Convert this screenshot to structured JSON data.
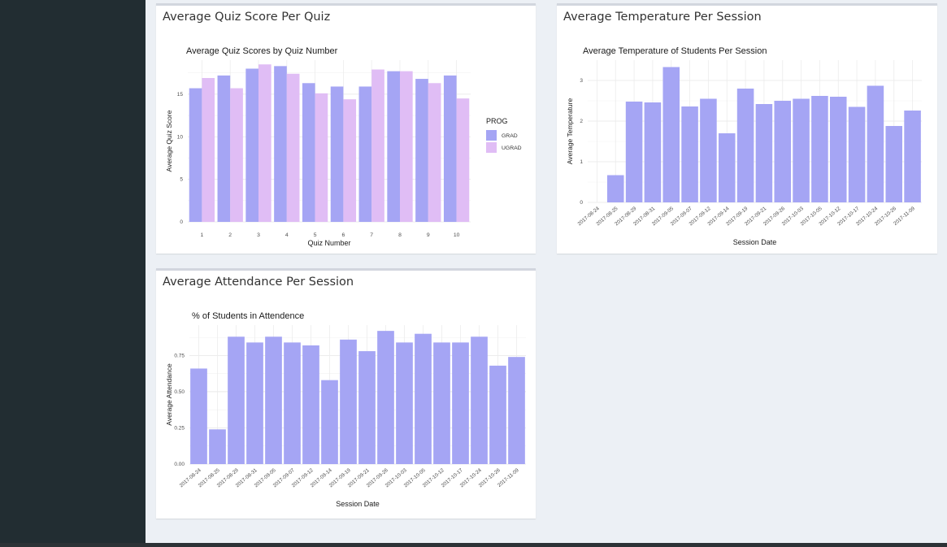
{
  "panels": {
    "quiz": {
      "title": "Average Quiz Score Per Quiz"
    },
    "temp": {
      "title": "Average Temperature Per Session"
    },
    "att": {
      "title": "Average Attendance Per Session"
    }
  },
  "colors": {
    "sidebar": "#222d32",
    "grad": "#a5a5f4",
    "ugrad": "#e0bdf5",
    "single_bar": "#a5a5f4"
  },
  "chart_data": [
    {
      "id": "quiz",
      "type": "bar",
      "title": "Average Quiz Scores by Quiz Number",
      "xlabel": "Quiz Number",
      "ylabel": "Average Quiz Score",
      "ylim": [
        0,
        19
      ],
      "yticks": [
        0,
        5,
        10,
        15
      ],
      "grid": true,
      "legend": {
        "title": "PROG",
        "position": "right"
      },
      "categories": [
        "1",
        "2",
        "3",
        "4",
        "5",
        "6",
        "7",
        "8",
        "9",
        "10"
      ],
      "series": [
        {
          "name": "GRAD",
          "values": [
            15.7,
            17.2,
            18.0,
            18.3,
            16.3,
            15.9,
            15.9,
            17.7,
            16.8,
            17.2
          ]
        },
        {
          "name": "UGRAD",
          "values": [
            16.9,
            15.7,
            18.5,
            17.4,
            15.1,
            14.4,
            17.9,
            17.7,
            16.3,
            14.5
          ]
        }
      ]
    },
    {
      "id": "temp",
      "type": "bar",
      "title": "Average Temperature of Students Per Session",
      "xlabel": "Session Date",
      "ylabel": "Average Temperature",
      "ylim": [
        0,
        3.5
      ],
      "yticks": [
        0,
        1,
        2,
        3
      ],
      "grid": true,
      "categories": [
        "2017-08-24",
        "2017-08-25",
        "2017-08-29",
        "2017-08-31",
        "2017-09-05",
        "2017-09-07",
        "2017-09-12",
        "2017-09-14",
        "2017-09-19",
        "2017-09-21",
        "2017-09-26",
        "2017-10-03",
        "2017-10-05",
        "2017-10-12",
        "2017-10-17",
        "2017-10-24",
        "2017-10-26",
        "2017-11-09"
      ],
      "values": [
        0,
        0.67,
        2.48,
        2.46,
        3.33,
        2.36,
        2.55,
        1.7,
        2.8,
        2.42,
        2.5,
        2.55,
        2.62,
        2.6,
        2.35,
        2.87,
        1.88,
        2.26
      ]
    },
    {
      "id": "att",
      "type": "bar",
      "title": "% of Students in Attendence",
      "xlabel": "Session Date",
      "ylabel": "Average Attendance",
      "ylim": [
        0,
        0.96
      ],
      "yticks": [
        0,
        0.25,
        0.5,
        0.75
      ],
      "ytick_labels": [
        "0.00",
        "0.25",
        "0.50",
        "0.75"
      ],
      "grid": true,
      "categories": [
        "2017-08-24",
        "2017-08-25",
        "2017-08-29",
        "2017-08-31",
        "2017-09-05",
        "2017-09-07",
        "2017-09-12",
        "2017-09-14",
        "2017-09-19",
        "2017-09-21",
        "2017-09-26",
        "2017-10-03",
        "2017-10-05",
        "2017-10-12",
        "2017-10-17",
        "2017-10-24",
        "2017-10-26",
        "2017-11-09"
      ],
      "values": [
        0.66,
        0.24,
        0.88,
        0.84,
        0.88,
        0.84,
        0.82,
        0.58,
        0.86,
        0.78,
        0.92,
        0.84,
        0.9,
        0.84,
        0.84,
        0.88,
        0.68,
        0.74
      ]
    }
  ]
}
